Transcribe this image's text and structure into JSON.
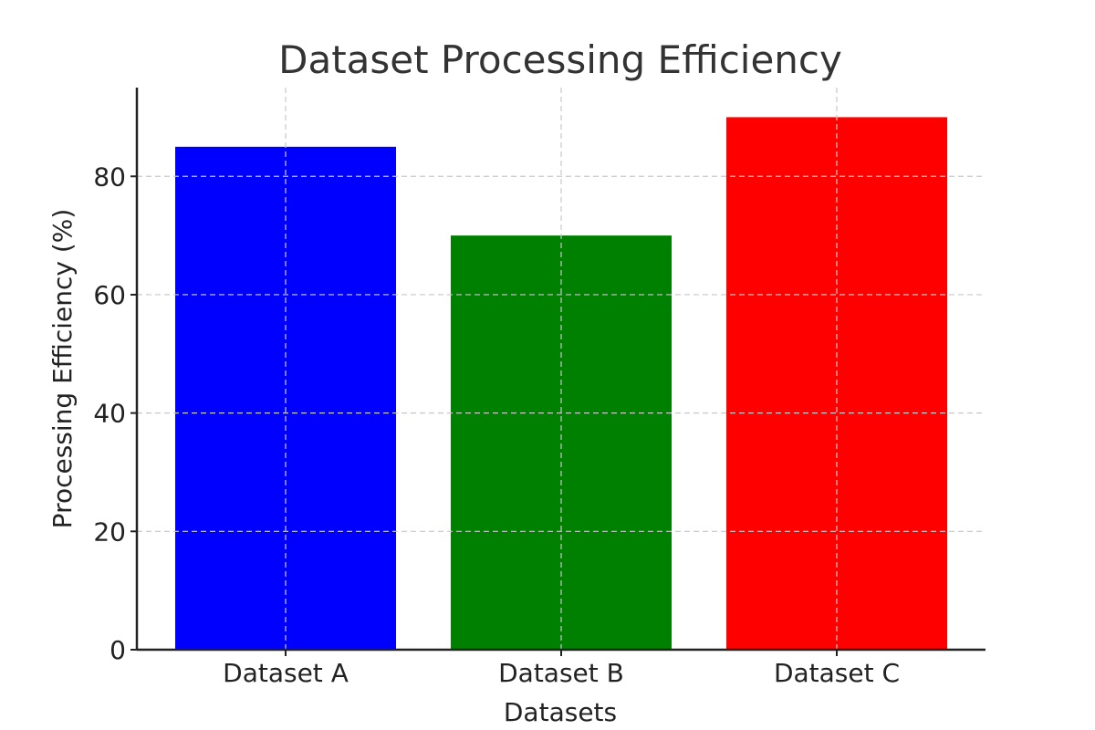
{
  "chart_data": {
    "type": "bar",
    "title": "Dataset Processing Efficiency",
    "xlabel": "Datasets",
    "ylabel": "Processing Efficiency (%)",
    "categories": [
      "Dataset A",
      "Dataset B",
      "Dataset C"
    ],
    "values": [
      85,
      70,
      90
    ],
    "colors": [
      "#0000ff",
      "#008000",
      "#ff0000"
    ],
    "ylim": [
      0,
      95
    ],
    "yticks": [
      0,
      20,
      40,
      60,
      80
    ],
    "ytick_labels": [
      "0",
      "20",
      "40",
      "60",
      "80"
    ],
    "grid": true,
    "legend": "none"
  }
}
